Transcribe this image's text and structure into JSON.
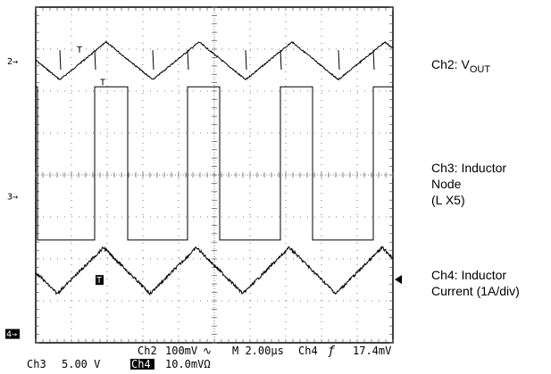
{
  "chart_data": {
    "type": "line",
    "title": "",
    "x_units_per_division": "2.00µs",
    "divisions": {
      "x": 10,
      "y": 8
    },
    "grid": true,
    "markers": {
      "ch2": "2",
      "ch3": "3",
      "ch4": "4",
      "trigger_glyph": "T"
    },
    "series": [
      {
        "name": "Ch2: V",
        "name_sub": "OUT",
        "channel": "Ch2",
        "scale": "100mV",
        "shape": "triangle",
        "period_us": 5.2,
        "phase_us": 1.35,
        "baseline_div": 6.72,
        "amplitude_div": 0.45,
        "spike_times_us": [
          1.35,
          3.3,
          6.55,
          8.5,
          11.75,
          13.7,
          16.95,
          18.9
        ]
      },
      {
        "name": "Ch3: Inductor Node (L X5)",
        "channel": "Ch3",
        "scale": "5.00 V",
        "shape": "square",
        "high_div": 6.1,
        "low_div": 2.45,
        "edges_us": [
          [
            0.0,
            1.05
          ],
          [
            3.3,
            5.15
          ],
          [
            8.5,
            10.3
          ],
          [
            13.7,
            15.5
          ]
        ],
        "high_intervals_us": [
          [
            0.0,
            0.1
          ],
          [
            3.3,
            5.15
          ],
          [
            8.5,
            10.3
          ],
          [
            13.7,
            15.5
          ],
          [
            18.9,
            20.0
          ]
        ]
      },
      {
        "name": "Ch4: Inductor Current (1A/div)",
        "channel": "Ch4",
        "scale": "10.0mVΩ",
        "shape": "triangle",
        "period_us": 5.2,
        "phase_us": 1.2,
        "baseline_div": 1.72,
        "amplitude_div": 0.55
      }
    ]
  },
  "readout": {
    "line1_left": "Ch2",
    "line1_scale": "100mV",
    "line1_coupling": "∿",
    "timebase": "M 2.00µs",
    "trigger_ch": "Ch4",
    "trigger_slope": "ƒ",
    "trigger_level": "17.4mV",
    "line2_ch3": "Ch3",
    "line2_ch3_scale": "5.00 V",
    "line2_ch4": "Ch4",
    "line2_ch4_scale": "10.0mVΩ"
  },
  "labels": {
    "ch2_prefix": "Ch2:  V",
    "ch2_sub": "OUT",
    "ch3_line1": "Ch3:  Inductor",
    "ch3_line2": "Node",
    "ch3_line3": "(L X5)",
    "ch4_line1": "Ch4:  Inductor",
    "ch4_line2": "Current (1A/div)"
  }
}
